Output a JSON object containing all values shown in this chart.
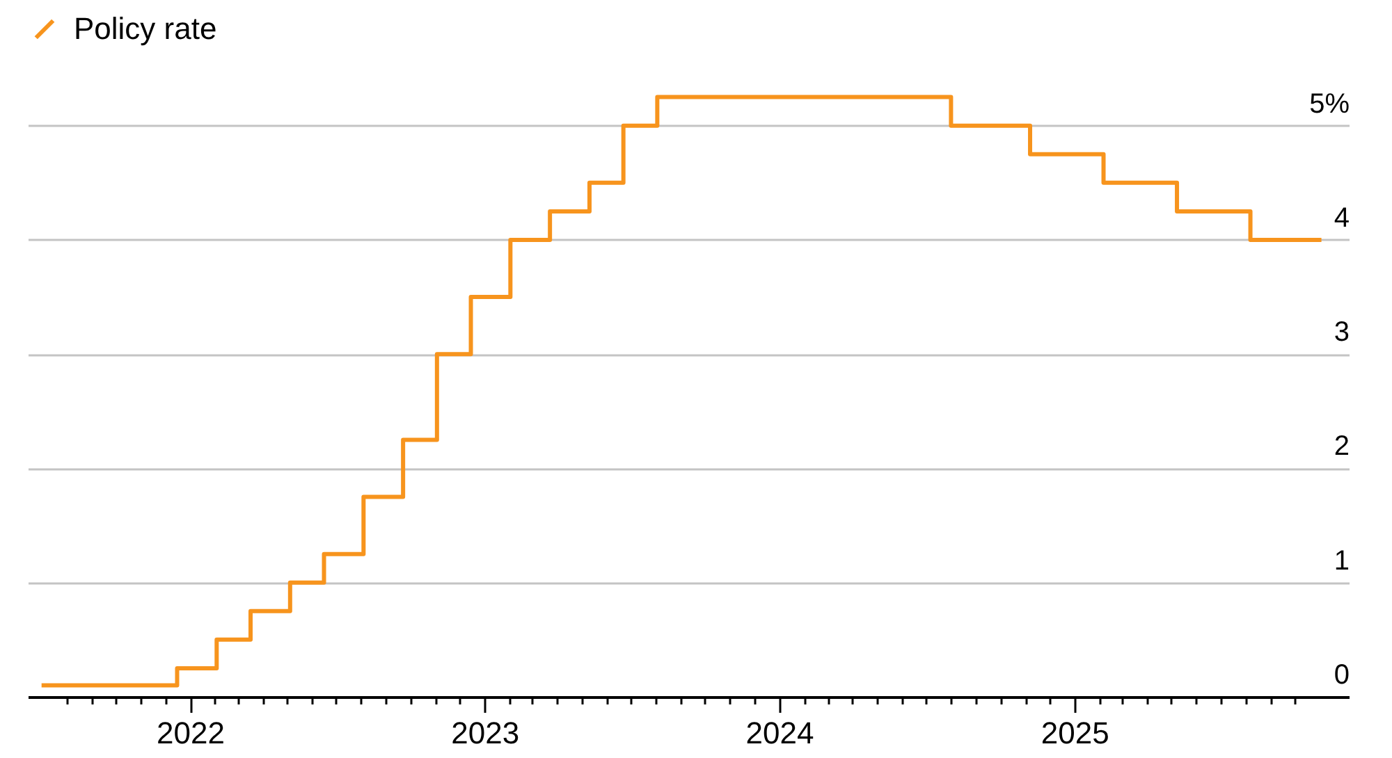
{
  "chart_data": {
    "type": "step",
    "xlim": [
      "2021-06-14",
      "2025-12-07"
    ],
    "ylim": [
      0,
      6.1
    ],
    "x": [
      "2021-07-01",
      "2021-12-16",
      "2022-02-03",
      "2022-03-17",
      "2022-05-05",
      "2022-06-16",
      "2022-08-04",
      "2022-09-22",
      "2022-11-03",
      "2022-12-15",
      "2023-02-02",
      "2023-03-23",
      "2023-05-11",
      "2023-06-22",
      "2023-08-03",
      "2024-08-01",
      "2024-11-07",
      "2025-02-06",
      "2025-05-08",
      "2025-08-07",
      "2025-11-03"
    ],
    "series": [
      {
        "name": "Policy rate",
        "color": "#f7941d",
        "values": [
          0.1,
          0.25,
          0.5,
          0.75,
          1,
          1.25,
          1.75,
          2.25,
          3,
          3.5,
          4,
          4.25,
          4.5,
          5,
          5.25,
          5,
          4.75,
          4.5,
          4.25,
          4,
          4
        ]
      }
    ],
    "yticks": [
      0,
      1,
      2,
      3,
      4,
      {
        "value": 5,
        "label": "5%"
      }
    ],
    "xticks": [
      {
        "value": "2021-08",
        "label": null
      },
      {
        "value": "2021-09",
        "label": null
      },
      {
        "value": "2021-10",
        "label": null
      },
      {
        "value": "2021-11",
        "label": null
      },
      {
        "value": "2021-12",
        "label": null
      },
      {
        "value": "2022-01",
        "label": "2022"
      },
      {
        "value": "2022-02",
        "label": null
      },
      {
        "value": "2022-03",
        "label": null
      },
      {
        "value": "2022-04",
        "label": null
      },
      {
        "value": "2022-05",
        "label": null
      },
      {
        "value": "2022-06",
        "label": null
      },
      {
        "value": "2022-07",
        "label": null
      },
      {
        "value": "2022-08",
        "label": null
      },
      {
        "value": "2022-09",
        "label": null
      },
      {
        "value": "2022-10",
        "label": null
      },
      {
        "value": "2022-11",
        "label": null
      },
      {
        "value": "2022-12",
        "label": null
      },
      {
        "value": "2023-01",
        "label": "2023"
      },
      {
        "value": "2023-02",
        "label": null
      },
      {
        "value": "2023-03",
        "label": null
      },
      {
        "value": "2023-04",
        "label": null
      },
      {
        "value": "2023-05",
        "label": null
      },
      {
        "value": "2023-06",
        "label": null
      },
      {
        "value": "2023-07",
        "label": null
      },
      {
        "value": "2023-08",
        "label": null
      },
      {
        "value": "2023-09",
        "label": null
      },
      {
        "value": "2023-10",
        "label": null
      },
      {
        "value": "2023-11",
        "label": null
      },
      {
        "value": "2023-12",
        "label": null
      },
      {
        "value": "2024-01",
        "label": "2024"
      },
      {
        "value": "2024-02",
        "label": null
      },
      {
        "value": "2024-03",
        "label": null
      },
      {
        "value": "2024-04",
        "label": null
      },
      {
        "value": "2024-05",
        "label": null
      },
      {
        "value": "2024-06",
        "label": null
      },
      {
        "value": "2024-07",
        "label": null
      },
      {
        "value": "2024-08",
        "label": null
      },
      {
        "value": "2024-09",
        "label": null
      },
      {
        "value": "2024-10",
        "label": null
      },
      {
        "value": "2024-11",
        "label": null
      },
      {
        "value": "2024-12",
        "label": null
      },
      {
        "value": "2025-01",
        "label": "2025"
      },
      {
        "value": "2025-02",
        "label": null
      },
      {
        "value": "2025-03",
        "label": null
      },
      {
        "value": "2025-04",
        "label": null
      },
      {
        "value": "2025-05",
        "label": null
      },
      {
        "value": "2025-06",
        "label": null
      },
      {
        "value": "2025-07",
        "label": null
      },
      {
        "value": "2025-08",
        "label": null
      },
      {
        "value": "2025-09",
        "label": null
      },
      {
        "value": "2025-10",
        "label": null
      }
    ],
    "grid": "y",
    "legend": "top left",
    "line_style": "solid"
  }
}
